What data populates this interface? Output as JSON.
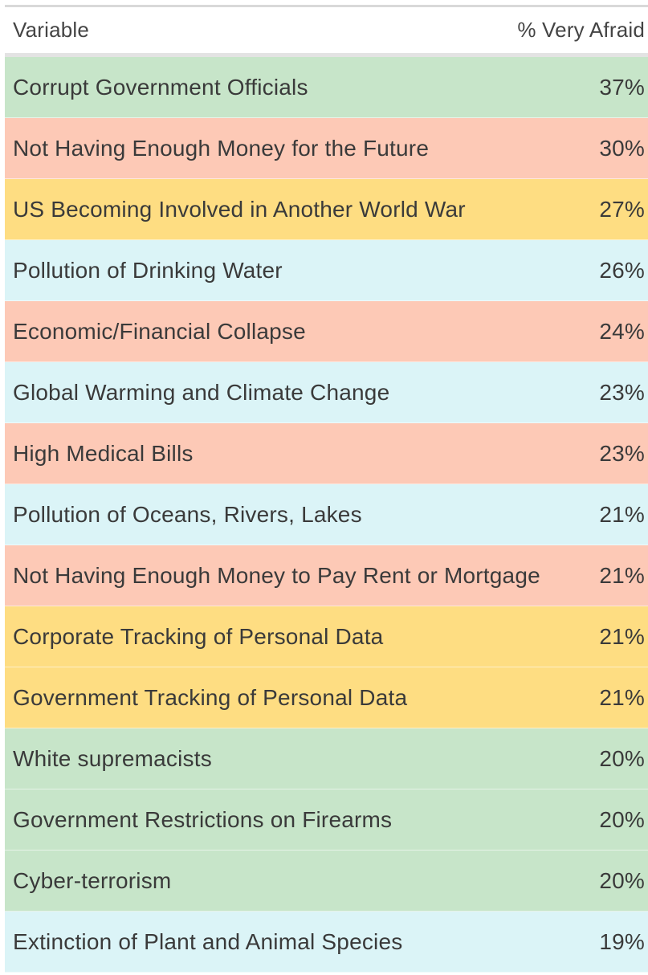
{
  "table": {
    "header": {
      "variable": "Variable",
      "value": "% Very Afraid"
    },
    "rows": [
      {
        "label": "Corrupt Government Officials",
        "value": "37%",
        "color": "#c7e5c9"
      },
      {
        "label": "Not Having Enough Money for the Future",
        "value": "30%",
        "color": "#fdc9b6"
      },
      {
        "label": "US Becoming Involved in Another World War",
        "value": "27%",
        "color": "#fedd82"
      },
      {
        "label": "Pollution of Drinking Water",
        "value": "26%",
        "color": "#dbf4f7"
      },
      {
        "label": "Economic/Financial Collapse",
        "value": "24%",
        "color": "#fdc9b6"
      },
      {
        "label": "Global Warming and Climate Change",
        "value": "23%",
        "color": "#dbf4f7"
      },
      {
        "label": "High Medical Bills",
        "value": "23%",
        "color": "#fdc9b6"
      },
      {
        "label": "Pollution of Oceans, Rivers, Lakes",
        "value": "21%",
        "color": "#dbf4f7"
      },
      {
        "label": "Not Having Enough Money to Pay Rent or Mortgage",
        "value": "21%",
        "color": "#fdc9b6"
      },
      {
        "label": "Corporate Tracking of Personal Data",
        "value": "21%",
        "color": "#fedd82"
      },
      {
        "label": "Government Tracking of Personal Data",
        "value": "21%",
        "color": "#fedd82"
      },
      {
        "label": "White supremacists",
        "value": "20%",
        "color": "#c7e5c9"
      },
      {
        "label": "Government Restrictions on Firearms",
        "value": "20%",
        "color": "#c7e5c9"
      },
      {
        "label": "Cyber-terrorism",
        "value": "20%",
        "color": "#c7e5c9"
      },
      {
        "label": "Extinction of Plant and Animal Species",
        "value": "19%",
        "color": "#dbf4f7"
      }
    ]
  }
}
